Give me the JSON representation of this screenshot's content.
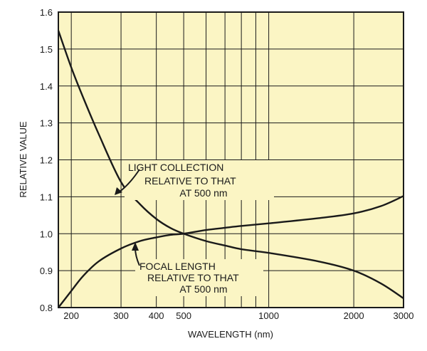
{
  "colors": {
    "plot_background": "#fbf5c4",
    "grid": "#1a1a1a",
    "curve": "#1a1a1a",
    "annotation_background": "#fbf5c4"
  },
  "chart_data": {
    "type": "line",
    "title": "",
    "xlabel": "WAVELENGTH (nm)",
    "ylabel": "RELATIVE VALUE",
    "xscale": "log",
    "xlim": [
      180,
      3000
    ],
    "ylim": [
      0.8,
      1.6
    ],
    "grid": true,
    "x_gridlines": [
      200,
      300,
      400,
      500,
      600,
      700,
      800,
      900,
      1000,
      2000,
      3000
    ],
    "y_gridlines": [
      0.8,
      0.9,
      1.0,
      1.1,
      1.2,
      1.3,
      1.4,
      1.5,
      1.6
    ],
    "x_tick_labels": [
      "200",
      "300",
      "400",
      "500",
      "1000",
      "2000",
      "3000"
    ],
    "y_tick_labels": [
      "0.8",
      "0.9",
      "1.0",
      "1.1",
      "1.2",
      "1.3",
      "1.4",
      "1.5",
      "1.6"
    ],
    "series": [
      {
        "x": [
          180,
          200,
          220,
          250,
          300,
          350,
          400,
          450,
          500,
          600,
          700,
          800,
          1000,
          1500,
          2000,
          2500,
          3000
        ],
        "y": [
          1.55,
          1.45,
          1.37,
          1.27,
          1.14,
          1.08,
          1.04,
          1.015,
          1.0,
          0.98,
          0.968,
          0.958,
          0.948,
          0.925,
          0.9,
          0.865,
          0.825
        ]
      },
      {
        "x": [
          180,
          200,
          220,
          250,
          300,
          350,
          400,
          450,
          500,
          600,
          700,
          800,
          1000,
          1500,
          2000,
          2500,
          3000
        ],
        "y": [
          0.8,
          0.845,
          0.885,
          0.925,
          0.96,
          0.98,
          0.99,
          0.997,
          1.0,
          1.01,
          1.016,
          1.021,
          1.028,
          1.042,
          1.055,
          1.075,
          1.102
        ]
      }
    ],
    "annotations": [
      {
        "lines": [
          "LIGHT COLLECTION",
          "RELATIVE  TO THAT",
          "AT 500 nm"
        ],
        "arrow_tip": [
          320,
          1.11
        ]
      },
      {
        "lines": [
          "FOCAL LENGTH",
          "RELATIVE TO THAT",
          "AT 500 nm"
        ],
        "arrow_tip": [
          360,
          0.97
        ]
      }
    ]
  }
}
